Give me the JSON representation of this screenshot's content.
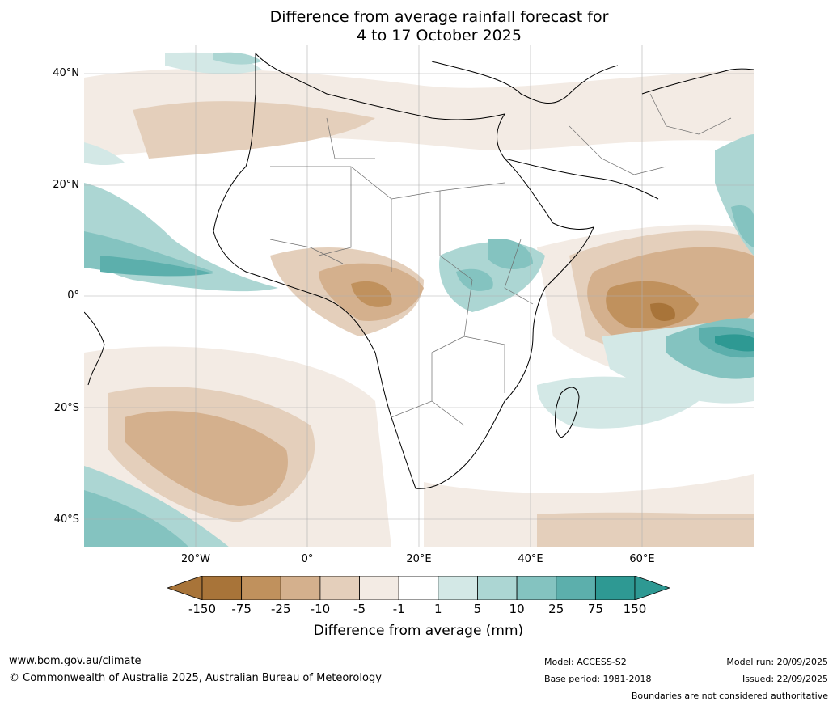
{
  "title": {
    "line1": "Difference from average rainfall forecast for",
    "line2": "4 to 17 October 2025"
  },
  "map": {
    "region": "Africa and surrounding oceans",
    "lat_labels": [
      "40°N",
      "20°N",
      "0°",
      "20°S",
      "40°S"
    ],
    "lon_labels": [
      "20°W",
      "0°",
      "20°E",
      "40°E",
      "60°E"
    ],
    "lat_range": [
      -45,
      45
    ],
    "lon_range": [
      -40,
      80
    ]
  },
  "colorbar": {
    "ticks": [
      "-150",
      "-75",
      "-25",
      "-10",
      "-5",
      "-1",
      "1",
      "5",
      "10",
      "25",
      "75",
      "150"
    ],
    "colors": [
      "#a87439",
      "#c0915d",
      "#d4b08d",
      "#e4cfbb",
      "#f3ebe4",
      "#ffffff",
      "#d3e8e6",
      "#acd6d3",
      "#84c3c0",
      "#5cafac",
      "#2e9993",
      "#2e9993"
    ],
    "below_color": "#a87439",
    "above_color": "#2e9993",
    "label": "Difference from average (mm)"
  },
  "footer": {
    "website": "www.bom.gov.au/climate",
    "copyright": "© Commonwealth of Australia 2025, Australian Bureau of Meteorology",
    "model": "Model: ACCESS-S2",
    "base_period": "Base period: 1981-2018",
    "model_run": "Model run: 20/09/2025",
    "issued": "Issued: 22/09/2025",
    "disclaimer": "Boundaries are not considered authoritative"
  }
}
